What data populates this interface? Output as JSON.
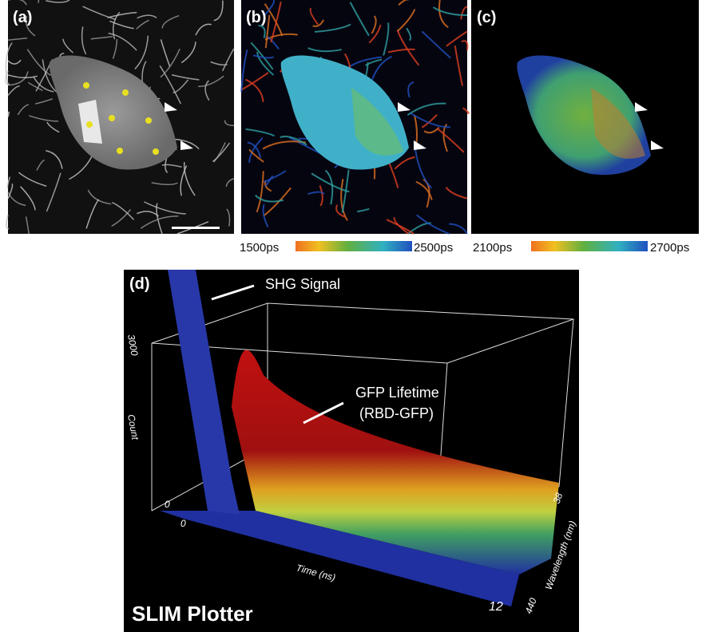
{
  "panels": [
    {
      "label": "(a)"
    },
    {
      "label": "(b)",
      "colorbar": {
        "min_label": "1500ps",
        "max_label": "2500ps"
      }
    },
    {
      "label": "(c)",
      "colorbar": {
        "min_label": "2100ps",
        "max_label": "2700ps"
      }
    }
  ],
  "plot": {
    "label": "(d)",
    "title": "SLIM Plotter",
    "annotations": [
      "SHG Signal",
      "GFP Lifetime",
      "(RBD-GFP)"
    ],
    "count_axis": {
      "title": "Count",
      "max_label": "3000",
      "min_label": "0"
    },
    "time_axis": {
      "title": "Time (ns)",
      "min_label": "0",
      "max_label": "12"
    },
    "wavelength_axis": {
      "title": "Wavelength (nm)",
      "min_label": "38",
      "max_label": "440"
    }
  }
}
